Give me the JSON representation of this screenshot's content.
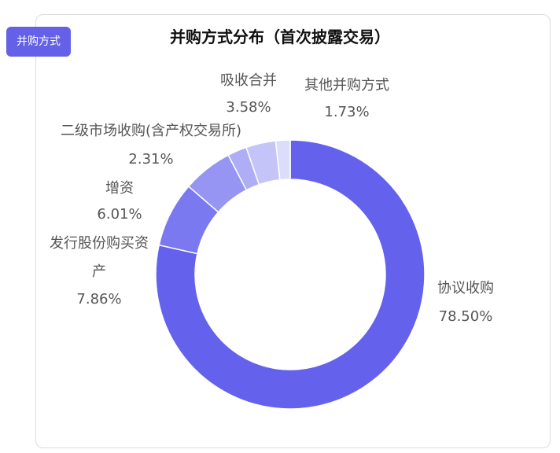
{
  "tag_button": {
    "label": "并购方式"
  },
  "chart_data": {
    "type": "pie",
    "title": "并购方式分布（首次披露交易）",
    "labels": [
      "协议收购",
      "发行股份购买资产",
      "增资",
      "二级市场收购(含产权交易所)",
      "吸收合并",
      "其他并购方式"
    ],
    "values": [
      78.5,
      7.86,
      6.01,
      2.31,
      3.58,
      1.73
    ],
    "value_labels": [
      "78.50%",
      "7.86%",
      "6.01%",
      "2.31%",
      "3.58%",
      "1.73%"
    ],
    "colors": [
      "#6461ed",
      "#7b79f0",
      "#9695f3",
      "#aeadf6",
      "#c5c4f9",
      "#dcdcfc"
    ],
    "donut": true
  }
}
